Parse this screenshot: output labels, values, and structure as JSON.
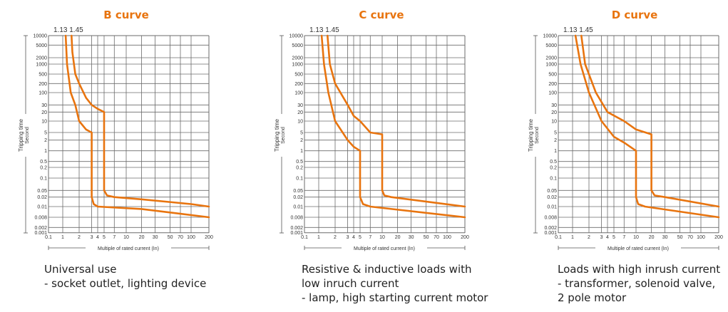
{
  "colors": {
    "title": "#e8740f",
    "curve": "#e8740f",
    "grid": "#6b6b6b"
  },
  "chart_data": [
    {
      "type": "line",
      "title": "B curve",
      "ylabel": "Tripping time",
      "ylabel_unit": "Second",
      "xlabel": "Multiple of rated current (In)",
      "top_labels": "1.13 1.45",
      "xticks": [
        "0.1",
        "1",
        "2",
        "3",
        "4",
        "5",
        "7",
        "10",
        "20",
        "30",
        "50",
        "70",
        "100",
        "200"
      ],
      "yticks": [
        "10000",
        "5000",
        "2000",
        "1000",
        "500",
        "200",
        "100",
        "30",
        "20",
        "10",
        "5",
        "2",
        "1",
        "0.5",
        "0.2",
        "0.1",
        "0.05",
        "0.02",
        "0.01",
        "0.008",
        "0.002",
        "0.001"
      ],
      "series": [
        {
          "name": "upper",
          "points": [
            [
              1.45,
              10000
            ],
            [
              1.5,
              3000
            ],
            [
              1.7,
              500
            ],
            [
              2,
              200
            ],
            [
              2.5,
              60
            ],
            [
              3,
              30
            ],
            [
              4,
              24
            ],
            [
              5,
              20
            ],
            [
              5,
              0.05
            ],
            [
              5.5,
              0.025
            ],
            [
              7,
              0.02
            ],
            [
              20,
              0.017
            ],
            [
              100,
              0.012
            ],
            [
              200,
              0.01
            ]
          ]
        },
        {
          "name": "lower",
          "points": [
            [
              1.13,
              10000
            ],
            [
              1.2,
              1000
            ],
            [
              1.4,
              100
            ],
            [
              1.7,
              30
            ],
            [
              2,
              10
            ],
            [
              2.5,
              6
            ],
            [
              3,
              5
            ],
            [
              3,
              0.02
            ],
            [
              3.3,
              0.012
            ],
            [
              4,
              0.01
            ],
            [
              20,
              0.0095
            ],
            [
              200,
              0.008
            ]
          ]
        }
      ]
    },
    {
      "type": "line",
      "title": "C curve",
      "ylabel": "Tripping time",
      "ylabel_unit": "Second",
      "xlabel": "Multiple of rated current (In)",
      "top_labels": "1.13 1.45",
      "xticks": [
        "0.1",
        "1",
        "2",
        "3",
        "4",
        "5",
        "7",
        "10",
        "20",
        "30",
        "50",
        "70",
        "100",
        "200"
      ],
      "yticks": [
        "10000",
        "5000",
        "2000",
        "1000",
        "500",
        "200",
        "100",
        "30",
        "20",
        "10",
        "5",
        "2",
        "1",
        "0.5",
        "0.2",
        "0.1",
        "0.05",
        "0.02",
        "0.01",
        "0.008",
        "0.002",
        "0.001"
      ],
      "series": [
        {
          "name": "upper",
          "points": [
            [
              1.45,
              10000
            ],
            [
              1.6,
              1000
            ],
            [
              2,
              200
            ],
            [
              3,
              30
            ],
            [
              4,
              15
            ],
            [
              5,
              10
            ],
            [
              7,
              5
            ],
            [
              10,
              4
            ],
            [
              10,
              0.05
            ],
            [
              11,
              0.025
            ],
            [
              15,
              0.02
            ],
            [
              200,
              0.01
            ]
          ]
        },
        {
          "name": "lower",
          "points": [
            [
              1.13,
              10000
            ],
            [
              1.25,
              1000
            ],
            [
              1.5,
              100
            ],
            [
              2,
              10
            ],
            [
              3,
              2
            ],
            [
              4,
              1.3
            ],
            [
              5,
              1
            ],
            [
              5,
              0.02
            ],
            [
              5.5,
              0.012
            ],
            [
              7,
              0.01
            ],
            [
              200,
              0.008
            ]
          ]
        }
      ]
    },
    {
      "type": "line",
      "title": "D curve",
      "ylabel": "Tripping time",
      "ylabel_unit": "Second",
      "xlabel": "Multiple of rated current (In)",
      "top_labels": "1.13 1.45",
      "xticks": [
        "0.1",
        "1",
        "2",
        "3",
        "4",
        "5",
        "7",
        "10",
        "20",
        "30",
        "50",
        "70",
        "100",
        "200"
      ],
      "yticks": [
        "10000",
        "5000",
        "2000",
        "1000",
        "500",
        "200",
        "100",
        "30",
        "20",
        "10",
        "5",
        "2",
        "1",
        "0.5",
        "0.2",
        "0.1",
        "0.05",
        "0.02",
        "0.01",
        "0.008",
        "0.002",
        "0.001"
      ],
      "series": [
        {
          "name": "upper",
          "points": [
            [
              1.45,
              10000
            ],
            [
              1.7,
              1000
            ],
            [
              2.5,
              100
            ],
            [
              4,
              20
            ],
            [
              7,
              10
            ],
            [
              10,
              6
            ],
            [
              20,
              4
            ],
            [
              20,
              0.05
            ],
            [
              22,
              0.025
            ],
            [
              30,
              0.02
            ],
            [
              200,
              0.01
            ]
          ]
        },
        {
          "name": "lower",
          "points": [
            [
              1.13,
              10000
            ],
            [
              1.4,
              1000
            ],
            [
              2,
              100
            ],
            [
              3,
              10
            ],
            [
              5,
              3
            ],
            [
              7,
              1.7
            ],
            [
              10,
              1
            ],
            [
              10,
              0.02
            ],
            [
              11,
              0.012
            ],
            [
              15,
              0.01
            ],
            [
              200,
              0.008
            ]
          ]
        }
      ]
    }
  ],
  "descriptions": [
    [
      "Universal use",
      "- socket outlet, lighting device"
    ],
    [
      "Resistive & inductive loads with",
      "low inruch current",
      "- lamp, high starting current motor"
    ],
    [
      "Loads with high inrush current",
      "- transformer, solenoid valve,",
      "2 pole motor"
    ]
  ]
}
